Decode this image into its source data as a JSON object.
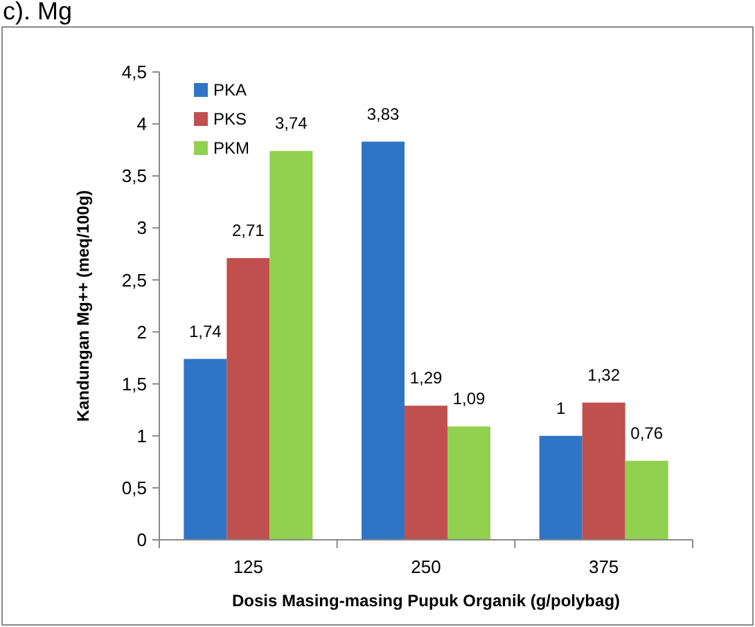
{
  "chart_data": {
    "type": "bar",
    "title": "c). Mg",
    "xlabel": "Dosis Masing-masing Pupuk Organik (g/polybag)",
    "ylabel": "Kandungan Mg++ (meq/100g)",
    "categories": [
      "125",
      "250",
      "375"
    ],
    "series": [
      {
        "name": "PKA",
        "color": "#2e75c6",
        "values": [
          1.74,
          3.83,
          1
        ],
        "value_labels": [
          "1,74",
          "3,83",
          "1"
        ]
      },
      {
        "name": "PKS",
        "color": "#c0504d",
        "values": [
          2.71,
          1.29,
          1.32
        ],
        "value_labels": [
          "2,71",
          "1,29",
          "1,32"
        ]
      },
      {
        "name": "PKM",
        "color": "#92d050",
        "values": [
          3.74,
          1.09,
          0.76
        ],
        "value_labels": [
          "3,74",
          "1,09",
          "0,76"
        ]
      }
    ],
    "ylim": [
      0,
      4.5
    ],
    "yticks": [
      0,
      {
        "value": 0.5,
        "label": "0,5"
      },
      1,
      {
        "value": 1.5,
        "label": "1,5"
      },
      2,
      {
        "value": 2.5,
        "label": "2,5"
      },
      3,
      {
        "value": 3.5,
        "label": "3,5"
      },
      4,
      {
        "value": 4.5,
        "label": "4,5"
      }
    ],
    "grid": false,
    "legend": "top left"
  }
}
